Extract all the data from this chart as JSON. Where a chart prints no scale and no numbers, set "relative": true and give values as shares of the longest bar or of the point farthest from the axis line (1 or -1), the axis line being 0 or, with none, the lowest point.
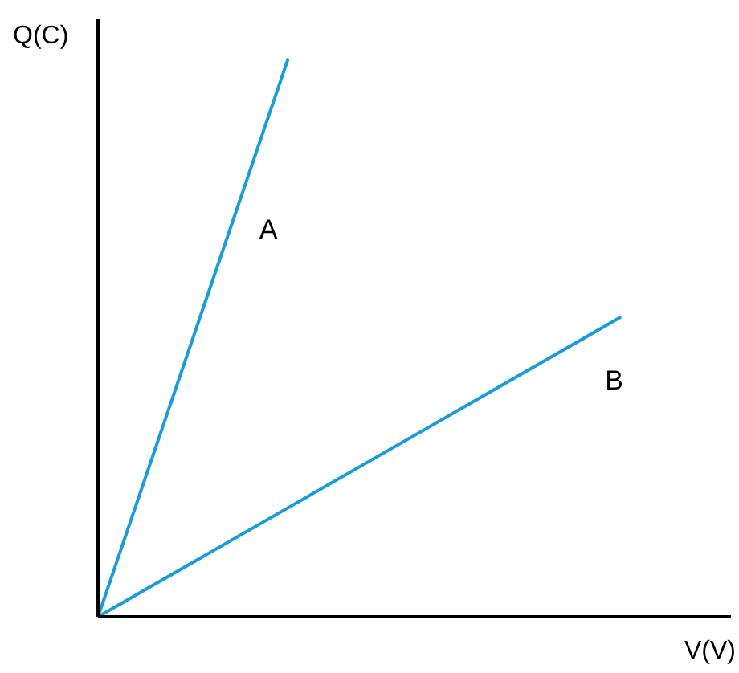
{
  "chart_data": {
    "type": "line",
    "relative": true,
    "xlabel": "V(V)",
    "ylabel": "Q(C)",
    "marker": "none",
    "line_style": "solid",
    "categories": [
      null,
      null,
      null,
      null,
      null,
      null,
      null,
      null,
      null,
      null,
      null,
      null
    ],
    "series": [
      {
        "name": "A",
        "color": "#1a9cd8",
        "values": [
          0,
          null,
          null,
          null,
          1,
          null,
          null,
          null,
          null,
          null,
          null,
          null
        ]
      },
      {
        "name": "B",
        "color": "#1a9cd8",
        "values": [
          0,
          null,
          null,
          null,
          null,
          null,
          null,
          null,
          null,
          null,
          null,
          0.537
        ]
      }
    ]
  }
}
